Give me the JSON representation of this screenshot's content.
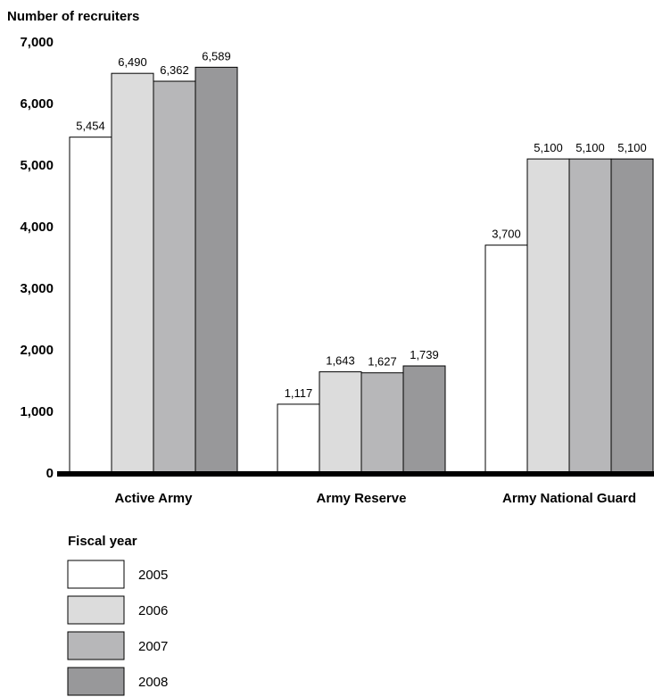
{
  "chart_data": {
    "type": "bar",
    "ylabel": "Number of recruiters",
    "xlabel": "",
    "ylim": [
      0,
      7000
    ],
    "yticks": [
      0,
      1000,
      2000,
      3000,
      4000,
      5000,
      6000,
      7000
    ],
    "ytick_labels": [
      "0",
      "1,000",
      "2,000",
      "3,000",
      "4,000",
      "5,000",
      "6,000",
      "7,000"
    ],
    "categories": [
      "Active Army",
      "Army Reserve",
      "Army National Guard"
    ],
    "series": [
      {
        "name": "2005",
        "color": "#ffffff",
        "values": [
          5454,
          1117,
          3700
        ],
        "labels": [
          "5,454",
          "1,117",
          "3,700"
        ]
      },
      {
        "name": "2006",
        "color": "#dcdcdc",
        "values": [
          6490,
          1643,
          5100
        ],
        "labels": [
          "6,490",
          "1,643",
          "5,100"
        ]
      },
      {
        "name": "2007",
        "color": "#b7b7b9",
        "values": [
          6362,
          1627,
          5100
        ],
        "labels": [
          "6,362",
          "1,627",
          "5,100"
        ]
      },
      {
        "name": "2008",
        "color": "#98989a",
        "values": [
          6589,
          1739,
          5100
        ],
        "labels": [
          "6,589",
          "1,739",
          "5,100"
        ]
      }
    ],
    "grid": false,
    "legend": {
      "title": "Fiscal year",
      "placement": "bottom-left"
    }
  }
}
